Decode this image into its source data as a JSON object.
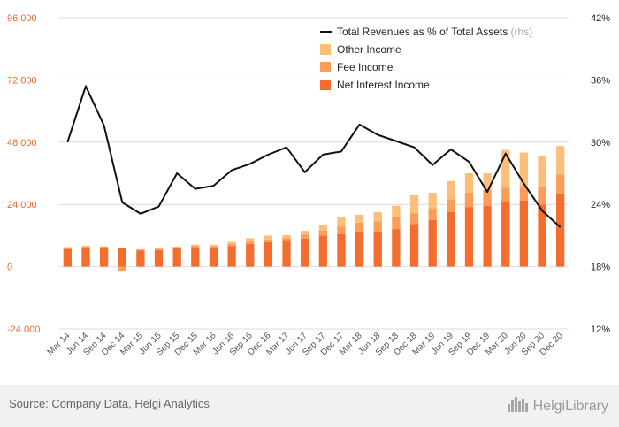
{
  "chart_data": {
    "type": "bar",
    "stacked": true,
    "categories": [
      "Mar 14",
      "Jun 14",
      "Sep 14",
      "Dec 14",
      "Mar 15",
      "Jun 15",
      "Sep 15",
      "Dec 15",
      "Mar 16",
      "Jun 16",
      "Sep 16",
      "Dec 16",
      "Mar 17",
      "Jun 17",
      "Sep 17",
      "Dec 17",
      "Mar 18",
      "Jun 18",
      "Sep 18",
      "Dec 18",
      "Mar 19",
      "Jun 19",
      "Sep 19",
      "Dec 19",
      "Mar 20",
      "Jun 20",
      "Sep 20",
      "Dec 20"
    ],
    "series": [
      {
        "name": "Net Interest Income",
        "axis": "left",
        "color": "#f26d2e",
        "values": [
          6800,
          7200,
          7200,
          7200,
          6200,
          6400,
          7000,
          7500,
          7200,
          8000,
          8800,
          9500,
          10000,
          10800,
          12000,
          12500,
          13500,
          13500,
          14500,
          16500,
          18000,
          21000,
          23000,
          23500,
          25000,
          25500,
          24000,
          28000
        ]
      },
      {
        "name": "Fee Income",
        "axis": "left",
        "color": "#f99d58",
        "values": [
          600,
          600,
          500,
          -1600,
          400,
          500,
          500,
          500,
          500,
          800,
          900,
          1000,
          1200,
          1500,
          2000,
          3000,
          3500,
          4000,
          4500,
          4000,
          4500,
          5000,
          5500,
          6000,
          5500,
          5500,
          7000,
          7500
        ]
      },
      {
        "name": "Other Income",
        "axis": "left",
        "color": "#fbbf79",
        "values": [
          100,
          300,
          100,
          200,
          100,
          100,
          200,
          500,
          800,
          800,
          1300,
          1500,
          1000,
          1500,
          2000,
          3500,
          3000,
          3500,
          4500,
          7000,
          6000,
          7000,
          7500,
          6500,
          14500,
          13000,
          11500,
          11000
        ]
      },
      {
        "name": "Total Revenues as % of Total Assets",
        "name_suffix": "(rhs)",
        "axis": "right",
        "type": "line",
        "color": "#111111",
        "values": [
          30.0,
          35.4,
          31.6,
          24.2,
          23.1,
          23.8,
          27.0,
          25.5,
          25.8,
          27.3,
          27.9,
          28.8,
          29.5,
          27.1,
          28.8,
          29.1,
          31.7,
          30.7,
          30.1,
          29.5,
          27.8,
          29.3,
          28.1,
          25.2,
          28.9,
          26.0,
          23.4,
          21.8
        ]
      }
    ],
    "yLeft": {
      "min": -24000,
      "max": 96000,
      "ticks": [
        "-24 000",
        "0",
        "24 000",
        "48 000",
        "72 000",
        "96 000"
      ],
      "tick_values": [
        -24000,
        0,
        24000,
        48000,
        72000,
        96000
      ]
    },
    "yRight": {
      "min": 12,
      "max": 42,
      "ticks": [
        "12%",
        "18%",
        "24%",
        "30%",
        "36%",
        "42%"
      ],
      "tick_values": [
        12,
        18,
        24,
        30,
        36,
        42
      ]
    },
    "legend_position": "top-right",
    "grid": "horizontal"
  },
  "footer": {
    "source": "Source: Company Data, Helgi Analytics",
    "logo_text": "HelgiLibrary"
  }
}
